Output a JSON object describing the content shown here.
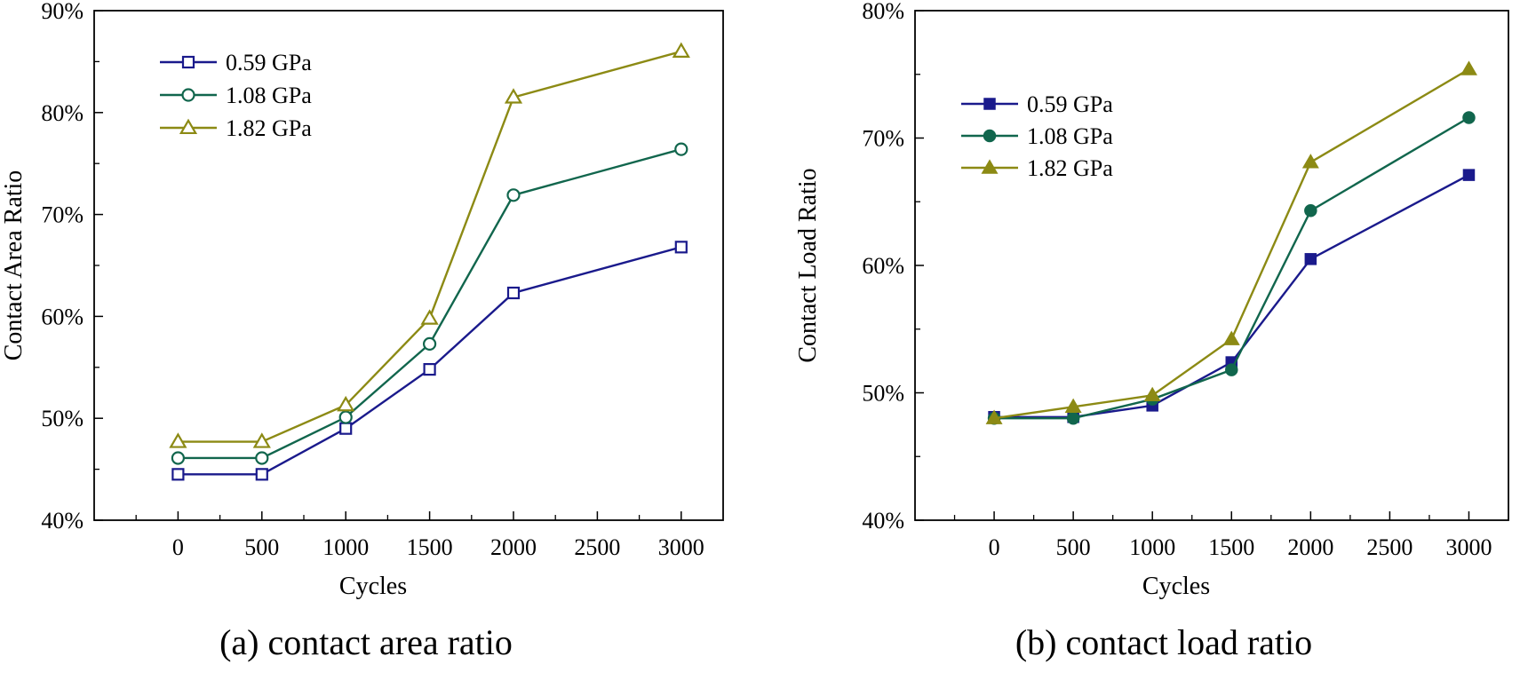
{
  "chart_data": [
    {
      "type": "line",
      "caption": "(a) contact area ratio",
      "xlabel": "Cycles",
      "ylabel": "Contact Area Ratio",
      "xlim": [
        -500,
        3250
      ],
      "ylim": [
        0.4,
        0.9
      ],
      "xticks": [
        0,
        500,
        1000,
        1500,
        2000,
        2500,
        3000
      ],
      "xtick_labels": [
        "0",
        "500",
        "1000",
        "1500",
        "2000",
        "2500",
        "3000"
      ],
      "yticks": [
        0.4,
        0.5,
        0.6,
        0.7,
        0.8,
        0.9
      ],
      "ytick_labels": [
        "40%",
        "50%",
        "60%",
        "70%",
        "80%",
        "90%"
      ],
      "legend_position": "top-left",
      "x": [
        0,
        500,
        1000,
        1500,
        2000,
        3000
      ],
      "series": [
        {
          "name": "0.59 GPa",
          "color": "#1a1a8c",
          "marker": "square",
          "filled": false,
          "values": [
            0.445,
            0.445,
            0.49,
            0.548,
            0.623,
            0.668
          ]
        },
        {
          "name": "1.08 GPa",
          "color": "#11664d",
          "marker": "circle",
          "filled": false,
          "values": [
            0.461,
            0.461,
            0.501,
            0.573,
            0.719,
            0.764
          ]
        },
        {
          "name": "1.82 GPa",
          "color": "#8c8a14",
          "marker": "triangle",
          "filled": false,
          "values": [
            0.477,
            0.477,
            0.513,
            0.598,
            0.815,
            0.86
          ]
        }
      ]
    },
    {
      "type": "line",
      "caption": "(b) contact load ratio",
      "xlabel": "Cycles",
      "ylabel": "Contact Load Ratio",
      "xlim": [
        -500,
        3250
      ],
      "ylim": [
        0.4,
        0.8
      ],
      "xticks": [
        0,
        500,
        1000,
        1500,
        2000,
        2500,
        3000
      ],
      "xtick_labels": [
        "0",
        "500",
        "1000",
        "1500",
        "2000",
        "2500",
        "3000"
      ],
      "yticks": [
        0.4,
        0.5,
        0.6,
        0.7,
        0.8
      ],
      "ytick_labels": [
        "40%",
        "50%",
        "60%",
        "70%",
        "80%"
      ],
      "legend_position": "top-left",
      "x": [
        0,
        500,
        1000,
        1500,
        2000,
        3000
      ],
      "series": [
        {
          "name": "0.59 GPa",
          "color": "#1a1a8c",
          "marker": "square",
          "filled": true,
          "values": [
            0.481,
            0.481,
            0.49,
            0.524,
            0.605,
            0.671
          ]
        },
        {
          "name": "1.08 GPa",
          "color": "#11664d",
          "marker": "circle",
          "filled": true,
          "values": [
            0.48,
            0.48,
            0.495,
            0.518,
            0.643,
            0.716
          ]
        },
        {
          "name": "1.82 GPa",
          "color": "#8c8a14",
          "marker": "triangle",
          "filled": true,
          "values": [
            0.48,
            0.489,
            0.498,
            0.542,
            0.681,
            0.754
          ]
        }
      ]
    }
  ]
}
